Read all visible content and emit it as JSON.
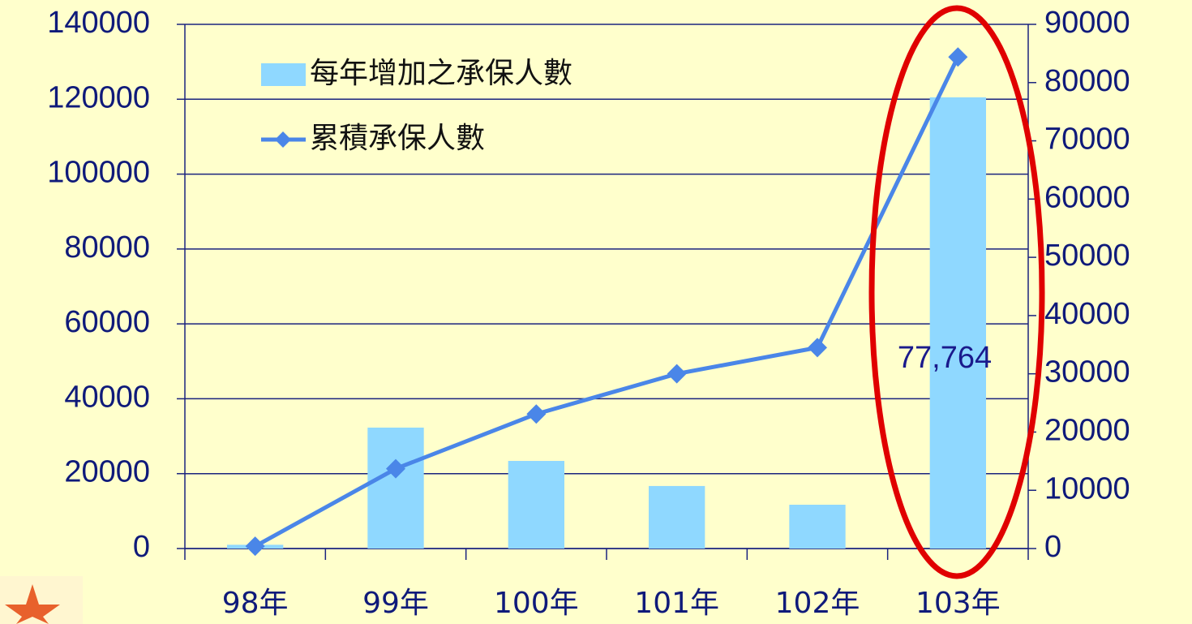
{
  "chart_data": {
    "type": "bar-line",
    "categories": [
      "98年",
      "99年",
      "100年",
      "101年",
      "102年",
      "103年"
    ],
    "series": [
      {
        "name": "每年增加之承保人數",
        "type": "bar",
        "color": "#8fd8ff",
        "values": [
          1000,
          32300,
          23400,
          16700,
          11700,
          120500
        ]
      },
      {
        "name": "累積承保人數",
        "type": "line",
        "axis": "y2",
        "color": "#4a86e8",
        "values": [
          400,
          13700,
          23100,
          30000,
          34500,
          84400
        ]
      }
    ],
    "annotation": "77,764",
    "ylim": [
      0,
      140000
    ],
    "yticks": [
      0,
      20000,
      40000,
      60000,
      80000,
      100000,
      120000,
      140000
    ],
    "y2lim": [
      0,
      90000
    ],
    "y2ticks": [
      0,
      10000,
      20000,
      30000,
      40000,
      50000,
      60000,
      70000,
      80000,
      90000
    ],
    "grid": true
  }
}
